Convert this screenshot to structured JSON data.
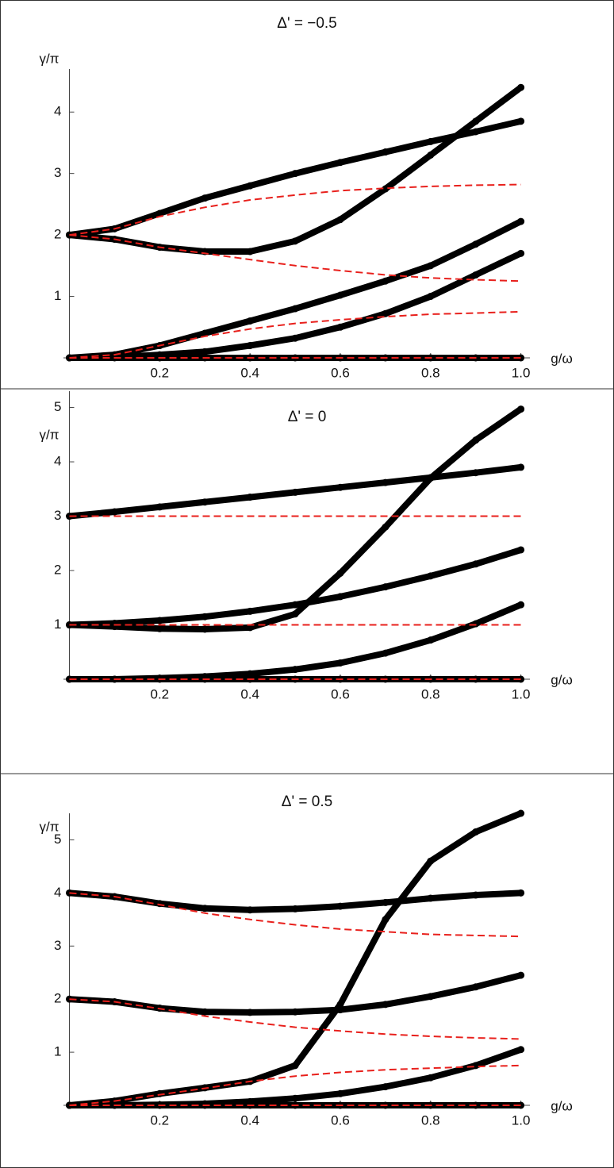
{
  "chart_data": [
    {
      "type": "line",
      "title": "Δ' = −0.5",
      "x_label": "g/ω",
      "y_label": "γ/π",
      "x": [
        0,
        0.1,
        0.2,
        0.3,
        0.4,
        0.5,
        0.6,
        0.7,
        0.8,
        0.9,
        1
      ],
      "xlim": [
        0,
        1.02
      ],
      "ylim": [
        0,
        4.7
      ],
      "xticks": [
        0.2,
        0.4,
        0.6,
        0.8,
        {
          "value": 1,
          "label": "1.0"
        }
      ],
      "yticks": [
        1,
        2,
        3,
        4
      ],
      "series": [
        {
          "color": "#000000",
          "style": "dots",
          "values": [
            2,
            2.1,
            2.35,
            2.6,
            2.8,
            3.0,
            3.18,
            3.35,
            3.52,
            3.68,
            3.85
          ]
        },
        {
          "color": "#000000",
          "style": "dots",
          "values": [
            2,
            1.93,
            1.8,
            1.73,
            1.73,
            1.9,
            2.25,
            2.75,
            3.3,
            3.85,
            4.4
          ]
        },
        {
          "color": "#000000",
          "style": "dots",
          "values": [
            0,
            0.05,
            0.2,
            0.4,
            0.6,
            0.8,
            1.02,
            1.25,
            1.5,
            1.85,
            2.22
          ]
        },
        {
          "color": "#000000",
          "style": "dots",
          "values": [
            0,
            0.01,
            0.05,
            0.1,
            0.2,
            0.32,
            0.5,
            0.72,
            1.0,
            1.35,
            1.7
          ]
        },
        {
          "color": "#000000",
          "style": "dots",
          "values": [
            0,
            0,
            0,
            0,
            0,
            0,
            0,
            0,
            0,
            0,
            0
          ]
        },
        {
          "color": "#e8201c",
          "style": "dashed",
          "values": [
            2,
            2.1,
            2.3,
            2.45,
            2.57,
            2.65,
            2.72,
            2.76,
            2.79,
            2.81,
            2.82
          ]
        },
        {
          "color": "#e8201c",
          "style": "dashed",
          "values": [
            2,
            1.93,
            1.8,
            1.7,
            1.6,
            1.5,
            1.42,
            1.35,
            1.3,
            1.27,
            1.25
          ]
        },
        {
          "color": "#e8201c",
          "style": "dashed",
          "values": [
            0,
            0.05,
            0.2,
            0.35,
            0.47,
            0.56,
            0.62,
            0.67,
            0.71,
            0.73,
            0.75
          ]
        },
        {
          "color": "#e8201c",
          "style": "dashed",
          "values": [
            0,
            0,
            0,
            0,
            0,
            0,
            0,
            0,
            0,
            0,
            0
          ]
        }
      ]
    },
    {
      "type": "line",
      "title": "Δ' = 0",
      "x_label": "g/ω",
      "y_label": "γ/π",
      "x": [
        0,
        0.1,
        0.2,
        0.3,
        0.4,
        0.5,
        0.6,
        0.7,
        0.8,
        0.9,
        1
      ],
      "xlim": [
        0,
        1.02
      ],
      "ylim": [
        0,
        5.3
      ],
      "xticks": [
        0.2,
        0.4,
        0.6,
        0.8,
        {
          "value": 1,
          "label": "1.0"
        }
      ],
      "yticks": [
        1,
        2,
        3,
        4,
        5
      ],
      "series": [
        {
          "color": "#000000",
          "style": "dots",
          "values": [
            3,
            3.08,
            3.17,
            3.26,
            3.35,
            3.44,
            3.53,
            3.62,
            3.71,
            3.8,
            3.9
          ]
        },
        {
          "color": "#000000",
          "style": "dots",
          "values": [
            1,
            1.03,
            1.08,
            1.15,
            1.25,
            1.37,
            1.52,
            1.7,
            1.9,
            2.12,
            2.38
          ]
        },
        {
          "color": "#000000",
          "style": "dots",
          "values": [
            1,
            0.97,
            0.93,
            0.92,
            0.95,
            1.2,
            1.95,
            2.8,
            3.7,
            4.4,
            4.97
          ]
        },
        {
          "color": "#000000",
          "style": "dots",
          "values": [
            0,
            0,
            0.02,
            0.05,
            0.1,
            0.18,
            0.3,
            0.48,
            0.72,
            1.02,
            1.37
          ]
        },
        {
          "color": "#000000",
          "style": "dots",
          "values": [
            0,
            0,
            0,
            0,
            0,
            0,
            0,
            0,
            0,
            0,
            0
          ]
        },
        {
          "color": "#e8201c",
          "style": "dashed",
          "values": [
            3,
            3,
            3,
            3,
            3,
            3,
            3,
            3,
            3,
            3,
            3
          ]
        },
        {
          "color": "#e8201c",
          "style": "dashed",
          "values": [
            1,
            1,
            1,
            1,
            1,
            1,
            1,
            1,
            1,
            1,
            1
          ]
        },
        {
          "color": "#e8201c",
          "style": "dashed",
          "values": [
            0,
            0,
            0,
            0,
            0,
            0,
            0,
            0,
            0,
            0,
            0
          ]
        }
      ]
    },
    {
      "type": "line",
      "title": "Δ' = 0.5",
      "x_label": "g/ω",
      "y_label": "γ/π",
      "x": [
        0,
        0.1,
        0.2,
        0.3,
        0.4,
        0.5,
        0.6,
        0.7,
        0.8,
        0.9,
        1
      ],
      "xlim": [
        0,
        1.02
      ],
      "ylim": [
        0,
        5.5
      ],
      "xticks": [
        0.2,
        0.4,
        0.6,
        0.8,
        {
          "value": 1,
          "label": "1.0"
        }
      ],
      "yticks": [
        1,
        2,
        3,
        4,
        5
      ],
      "series": [
        {
          "color": "#000000",
          "style": "dots",
          "values": [
            4,
            3.93,
            3.8,
            3.71,
            3.68,
            3.7,
            3.75,
            3.82,
            3.9,
            3.96,
            4.0
          ]
        },
        {
          "color": "#000000",
          "style": "dots",
          "values": [
            2,
            1.95,
            1.83,
            1.76,
            1.75,
            1.76,
            1.8,
            1.9,
            2.05,
            2.23,
            2.45
          ]
        },
        {
          "color": "#000000",
          "style": "dots",
          "values": [
            0,
            0.08,
            0.22,
            0.33,
            0.45,
            0.75,
            1.9,
            3.5,
            4.6,
            5.15,
            5.5
          ]
        },
        {
          "color": "#000000",
          "style": "dots",
          "values": [
            0,
            0,
            0.01,
            0.03,
            0.07,
            0.13,
            0.22,
            0.35,
            0.52,
            0.75,
            1.05
          ]
        },
        {
          "color": "#000000",
          "style": "dots",
          "values": [
            0,
            0,
            0,
            0,
            0,
            0,
            0,
            0,
            0,
            0,
            0
          ]
        },
        {
          "color": "#e8201c",
          "style": "dashed",
          "values": [
            4,
            3.93,
            3.78,
            3.62,
            3.5,
            3.4,
            3.32,
            3.27,
            3.22,
            3.2,
            3.18
          ]
        },
        {
          "color": "#e8201c",
          "style": "dashed",
          "values": [
            2,
            1.95,
            1.82,
            1.68,
            1.57,
            1.47,
            1.4,
            1.34,
            1.3,
            1.27,
            1.25
          ]
        },
        {
          "color": "#e8201c",
          "style": "dashed",
          "values": [
            0,
            0.08,
            0.2,
            0.32,
            0.45,
            0.55,
            0.62,
            0.67,
            0.7,
            0.73,
            0.75
          ]
        },
        {
          "color": "#e8201c",
          "style": "dashed",
          "values": [
            0,
            0,
            0,
            0,
            0,
            0,
            0,
            0,
            0,
            0,
            0
          ]
        }
      ]
    }
  ]
}
